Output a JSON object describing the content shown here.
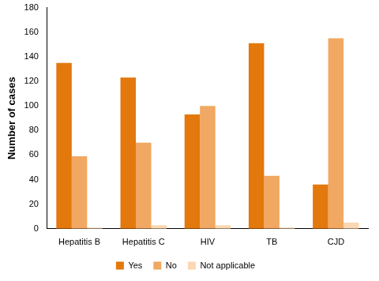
{
  "chart_data": {
    "type": "bar",
    "y_label": "Number of cases",
    "categories": [
      "Hepatitis B",
      "Hepatitis C",
      "HIV",
      "TB",
      "CJD"
    ],
    "series": [
      {
        "name": "Yes",
        "color": "#e3780c",
        "values": [
          135,
          123,
          93,
          151,
          36
        ]
      },
      {
        "name": "No",
        "color": "#f0a862",
        "values": [
          59,
          70,
          100,
          43,
          155
        ]
      },
      {
        "name": "Not applicable",
        "color": "#fbd8b2",
        "values": [
          1,
          3,
          3,
          1,
          5
        ]
      }
    ],
    "ylim": [
      0,
      180
    ],
    "yticks": [
      0,
      20,
      40,
      60,
      80,
      100,
      120,
      140,
      160,
      180
    ],
    "grid": false,
    "legend": "bottom"
  }
}
